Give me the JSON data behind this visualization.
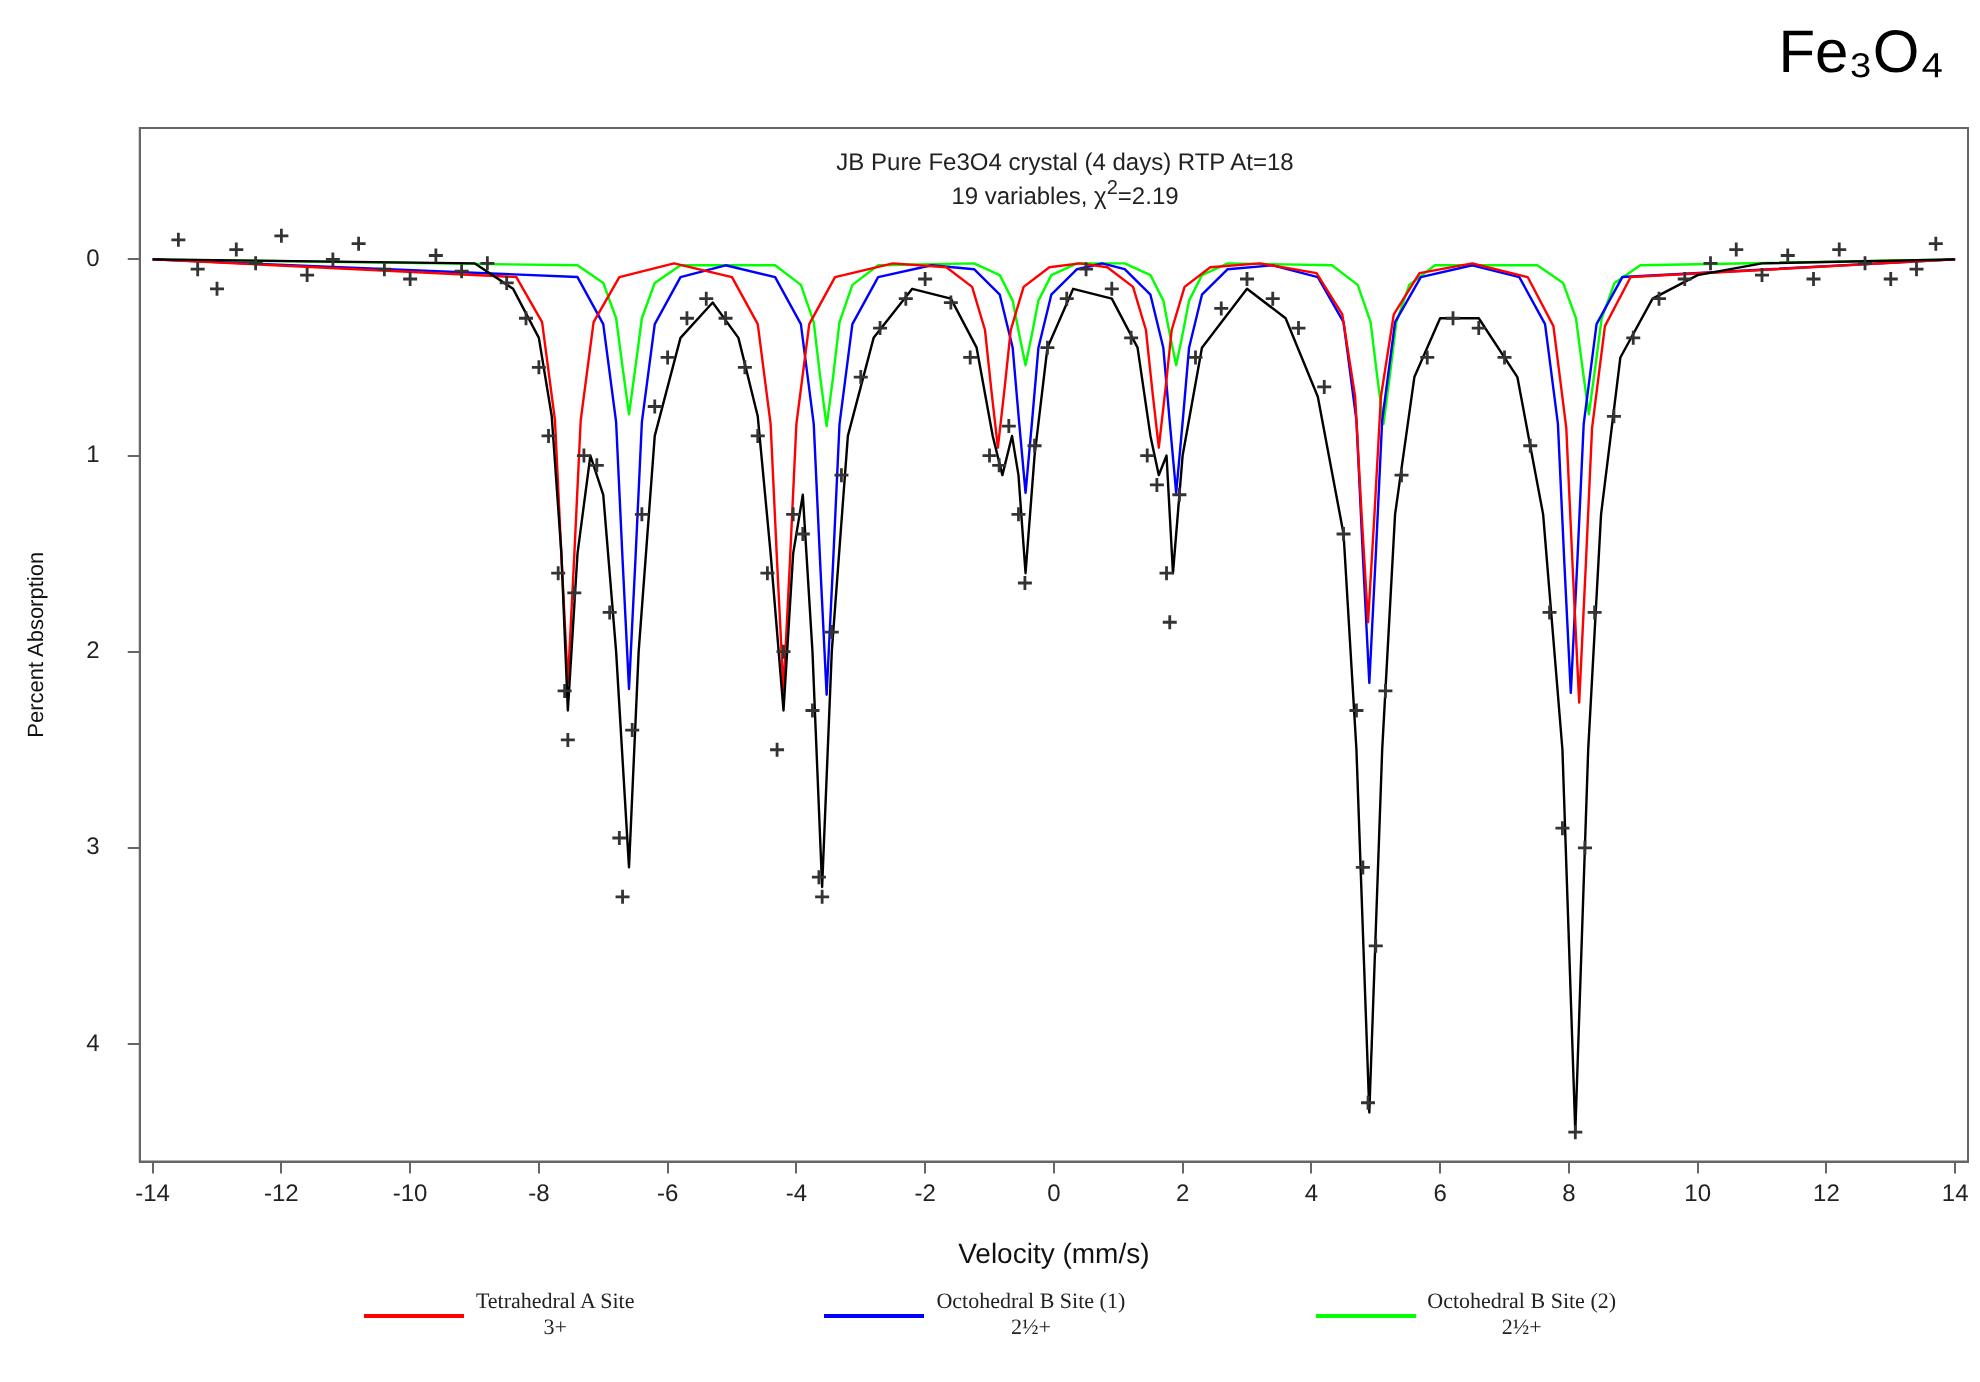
{
  "chart_data": {
    "type": "line",
    "title": "JB Pure Fe3O4 crystal (4 days) RTP At=18",
    "subtitle": "19 variables, χ$^{2}$=2.19",
    "xlabel": "Velocity (mm/s)",
    "ylabel": "Percent Absorption",
    "annotations": [
      "Fe₃O₄"
    ],
    "xlim": [
      -14.2,
      14.2
    ],
    "xticks": [
      -14,
      -12,
      -10,
      -8,
      -6,
      -4,
      -2,
      0,
      2,
      4,
      6,
      8,
      10,
      12,
      14
    ],
    "ylim": [
      4.6,
      -0.67
    ],
    "yticks": [
      0,
      1,
      2,
      3,
      4
    ],
    "grid": false,
    "legend": "bottom",
    "line_style": "solid",
    "series": [
      {
        "type": "scatter",
        "marker": "cross",
        "color": "#333333",
        "x": [
          -13.6,
          -13.3,
          -13.0,
          -12.7,
          -12.4,
          -12.0,
          -11.6,
          -11.2,
          -10.8,
          -10.4,
          -10.0,
          -9.6,
          -9.2,
          -8.8,
          -8.5,
          -8.2,
          -8.0,
          -7.85,
          -7.7,
          -7.6,
          -7.55,
          -7.45,
          -7.3,
          -7.1,
          -6.9,
          -6.75,
          -6.7,
          -6.55,
          -6.4,
          -6.2,
          -6.0,
          -5.7,
          -5.4,
          -5.1,
          -4.8,
          -4.6,
          -4.45,
          -4.3,
          -4.2,
          -4.05,
          -3.9,
          -3.75,
          -3.65,
          -3.6,
          -3.45,
          -3.3,
          -3.0,
          -2.7,
          -2.3,
          -2.0,
          -1.6,
          -1.3,
          -1.0,
          -0.85,
          -0.7,
          -0.55,
          -0.45,
          -0.3,
          -0.1,
          0.2,
          0.5,
          0.9,
          1.2,
          1.45,
          1.6,
          1.75,
          1.8,
          1.95,
          2.2,
          2.6,
          3.0,
          3.4,
          3.8,
          4.2,
          4.5,
          4.7,
          4.8,
          4.88,
          5.0,
          5.15,
          5.4,
          5.8,
          6.2,
          6.6,
          7.0,
          7.4,
          7.7,
          7.9,
          8.1,
          8.25,
          8.4,
          8.7,
          9.0,
          9.4,
          9.8,
          10.2,
          10.6,
          11.0,
          11.4,
          11.8,
          12.2,
          12.6,
          13.0,
          13.4,
          13.7
        ],
        "values": [
          -0.1,
          0.05,
          0.15,
          -0.05,
          0.02,
          -0.12,
          0.08,
          0.0,
          -0.08,
          0.05,
          0.1,
          -0.02,
          0.06,
          0.02,
          0.12,
          0.3,
          0.55,
          0.9,
          1.6,
          2.2,
          2.45,
          1.7,
          1.0,
          1.05,
          1.8,
          2.95,
          3.25,
          2.4,
          1.3,
          0.75,
          0.5,
          0.3,
          0.2,
          0.3,
          0.55,
          0.9,
          1.6,
          2.5,
          2.0,
          1.3,
          1.4,
          2.3,
          3.15,
          3.25,
          1.9,
          1.1,
          0.6,
          0.35,
          0.2,
          0.1,
          0.22,
          0.5,
          1.0,
          1.05,
          0.85,
          1.3,
          1.65,
          0.95,
          0.45,
          0.2,
          0.05,
          0.15,
          0.4,
          1.0,
          1.15,
          1.6,
          1.85,
          1.2,
          0.5,
          0.25,
          0.1,
          0.2,
          0.35,
          0.65,
          1.4,
          2.3,
          3.1,
          4.3,
          3.5,
          2.2,
          1.1,
          0.5,
          0.3,
          0.35,
          0.5,
          0.95,
          1.8,
          2.9,
          4.45,
          3.0,
          1.8,
          0.8,
          0.4,
          0.2,
          0.1,
          0.02,
          -0.05,
          0.08,
          -0.02,
          0.1,
          -0.05,
          0.02,
          0.1,
          0.05,
          -0.08
        ]
      },
      {
        "color": "#000000",
        "x": [
          -14,
          -9,
          -8.4,
          -8.0,
          -7.8,
          -7.65,
          -7.55,
          -7.4,
          -7.2,
          -7.0,
          -6.8,
          -6.6,
          -6.45,
          -6.2,
          -5.8,
          -5.3,
          -4.9,
          -4.6,
          -4.4,
          -4.2,
          -4.05,
          -3.9,
          -3.75,
          -3.6,
          -3.45,
          -3.2,
          -2.8,
          -2.2,
          -1.6,
          -1.2,
          -0.95,
          -0.8,
          -0.65,
          -0.55,
          -0.44,
          -0.3,
          -0.1,
          0.3,
          0.9,
          1.3,
          1.5,
          1.63,
          1.75,
          1.85,
          2.0,
          2.3,
          3.0,
          3.6,
          4.1,
          4.5,
          4.7,
          4.9,
          5.1,
          5.3,
          5.6,
          6.0,
          6.6,
          7.2,
          7.6,
          7.9,
          8.1,
          8.3,
          8.5,
          8.8,
          9.3,
          10,
          11,
          14
        ],
        "values": [
          0,
          0.02,
          0.15,
          0.4,
          0.8,
          1.5,
          2.3,
          1.5,
          1.0,
          1.2,
          2.0,
          3.1,
          2.0,
          0.9,
          0.4,
          0.22,
          0.4,
          0.8,
          1.5,
          2.3,
          1.5,
          1.2,
          2.0,
          3.2,
          2.0,
          0.9,
          0.4,
          0.15,
          0.2,
          0.45,
          0.9,
          1.1,
          0.9,
          1.1,
          1.6,
          1.0,
          0.45,
          0.15,
          0.2,
          0.45,
          0.9,
          1.1,
          1.0,
          1.6,
          1.0,
          0.45,
          0.15,
          0.3,
          0.7,
          1.4,
          2.5,
          4.35,
          2.5,
          1.3,
          0.6,
          0.3,
          0.3,
          0.6,
          1.3,
          2.5,
          4.45,
          2.5,
          1.3,
          0.5,
          0.2,
          0.08,
          0.02,
          0
        ]
      },
      {
        "name": "Tetrahedral A Site\n3+",
        "color": "#ff0000",
        "x": [
          -14,
          -8.35,
          -7.95,
          -7.75,
          -7.65,
          -7.55,
          -7.45,
          -7.35,
          -7.15,
          -6.75,
          -5.9,
          -5.0,
          -4.6,
          -4.4,
          -4.3,
          -4.2,
          -4.1,
          -4.0,
          -3.8,
          -3.4,
          -2.5,
          -1.67,
          -1.27,
          -1.07,
          -0.97,
          -0.87,
          -0.77,
          -0.67,
          -0.47,
          -0.07,
          0.4,
          0.83,
          1.23,
          1.43,
          1.53,
          1.63,
          1.73,
          1.83,
          2.03,
          2.43,
          3.2,
          4.08,
          4.48,
          4.68,
          4.78,
          4.88,
          4.98,
          5.08,
          5.28,
          5.68,
          6.5,
          7.36,
          7.76,
          7.96,
          8.06,
          8.16,
          8.26,
          8.36,
          8.56,
          8.96,
          14
        ],
        "values": [
          0,
          0.09,
          0.32,
          0.82,
          1.51,
          2.16,
          1.51,
          0.82,
          0.32,
          0.09,
          0.02,
          0.09,
          0.33,
          0.84,
          1.54,
          2.2,
          1.54,
          0.84,
          0.33,
          0.09,
          0.02,
          0.04,
          0.14,
          0.36,
          0.67,
          0.96,
          0.67,
          0.36,
          0.14,
          0.04,
          0.02,
          0.04,
          0.14,
          0.36,
          0.67,
          0.96,
          0.67,
          0.36,
          0.14,
          0.04,
          0.02,
          0.07,
          0.28,
          0.7,
          1.3,
          1.85,
          1.3,
          0.7,
          0.28,
          0.07,
          0.02,
          0.09,
          0.34,
          0.86,
          1.58,
          2.26,
          1.58,
          0.86,
          0.34,
          0.09,
          0
        ]
      },
      {
        "name": "Octohedral B Site (1)\n2½+",
        "color": "#0000ff",
        "x": [
          -14,
          -7.4,
          -7.0,
          -6.8,
          -6.7,
          -6.6,
          -6.5,
          -6.4,
          -6.2,
          -5.8,
          -5.1,
          -4.33,
          -3.93,
          -3.73,
          -3.63,
          -3.53,
          -3.43,
          -3.33,
          -3.13,
          -2.73,
          -1.9,
          -1.24,
          -0.84,
          -0.64,
          -0.54,
          -0.44,
          -0.34,
          -0.24,
          -0.04,
          0.36,
          0.75,
          1.1,
          1.5,
          1.7,
          1.8,
          1.9,
          2.0,
          2.1,
          2.3,
          2.7,
          3.4,
          4.1,
          4.5,
          4.7,
          4.8,
          4.9,
          5.0,
          5.1,
          5.3,
          5.7,
          6.5,
          7.23,
          7.63,
          7.83,
          7.93,
          8.03,
          8.13,
          8.23,
          8.43,
          8.83,
          14
        ],
        "values": [
          0,
          0.09,
          0.33,
          0.83,
          1.53,
          2.19,
          1.53,
          0.83,
          0.33,
          0.09,
          0.03,
          0.09,
          0.33,
          0.84,
          1.55,
          2.22,
          1.55,
          0.84,
          0.33,
          0.09,
          0.03,
          0.05,
          0.18,
          0.45,
          0.83,
          1.19,
          0.83,
          0.45,
          0.18,
          0.05,
          0.02,
          0.05,
          0.18,
          0.45,
          0.83,
          1.19,
          0.83,
          0.45,
          0.18,
          0.05,
          0.03,
          0.09,
          0.32,
          0.82,
          1.51,
          2.16,
          1.51,
          0.82,
          0.32,
          0.09,
          0.03,
          0.09,
          0.33,
          0.84,
          1.55,
          2.21,
          1.55,
          0.84,
          0.33,
          0.09,
          0
        ]
      },
      {
        "name": "Octohedral B Site (2)\n2½+",
        "color": "#00ff00",
        "x": [
          -14,
          -7.4,
          -7.0,
          -6.8,
          -6.7,
          -6.6,
          -6.5,
          -6.4,
          -6.2,
          -5.8,
          -4.33,
          -3.93,
          -3.73,
          -3.63,
          -3.53,
          -3.43,
          -3.33,
          -3.13,
          -2.73,
          -1.24,
          -0.84,
          -0.64,
          -0.54,
          -0.44,
          -0.34,
          -0.24,
          -0.04,
          0.36,
          1.1,
          1.5,
          1.7,
          1.8,
          1.9,
          2.0,
          2.1,
          2.3,
          2.7,
          4.32,
          4.72,
          4.92,
          5.02,
          5.12,
          5.22,
          5.32,
          5.52,
          5.92,
          7.51,
          7.91,
          8.11,
          8.21,
          8.31,
          8.41,
          8.51,
          8.71,
          9.11,
          14
        ],
        "values": [
          0,
          0.03,
          0.12,
          0.3,
          0.55,
          0.79,
          0.55,
          0.3,
          0.12,
          0.03,
          0.03,
          0.13,
          0.32,
          0.6,
          0.85,
          0.6,
          0.32,
          0.13,
          0.03,
          0.02,
          0.08,
          0.21,
          0.38,
          0.54,
          0.38,
          0.21,
          0.08,
          0.02,
          0.02,
          0.08,
          0.21,
          0.38,
          0.54,
          0.38,
          0.21,
          0.08,
          0.02,
          0.03,
          0.13,
          0.32,
          0.59,
          0.84,
          0.59,
          0.32,
          0.13,
          0.03,
          0.03,
          0.12,
          0.3,
          0.55,
          0.79,
          0.55,
          0.3,
          0.12,
          0.03,
          0
        ]
      }
    ]
  }
}
